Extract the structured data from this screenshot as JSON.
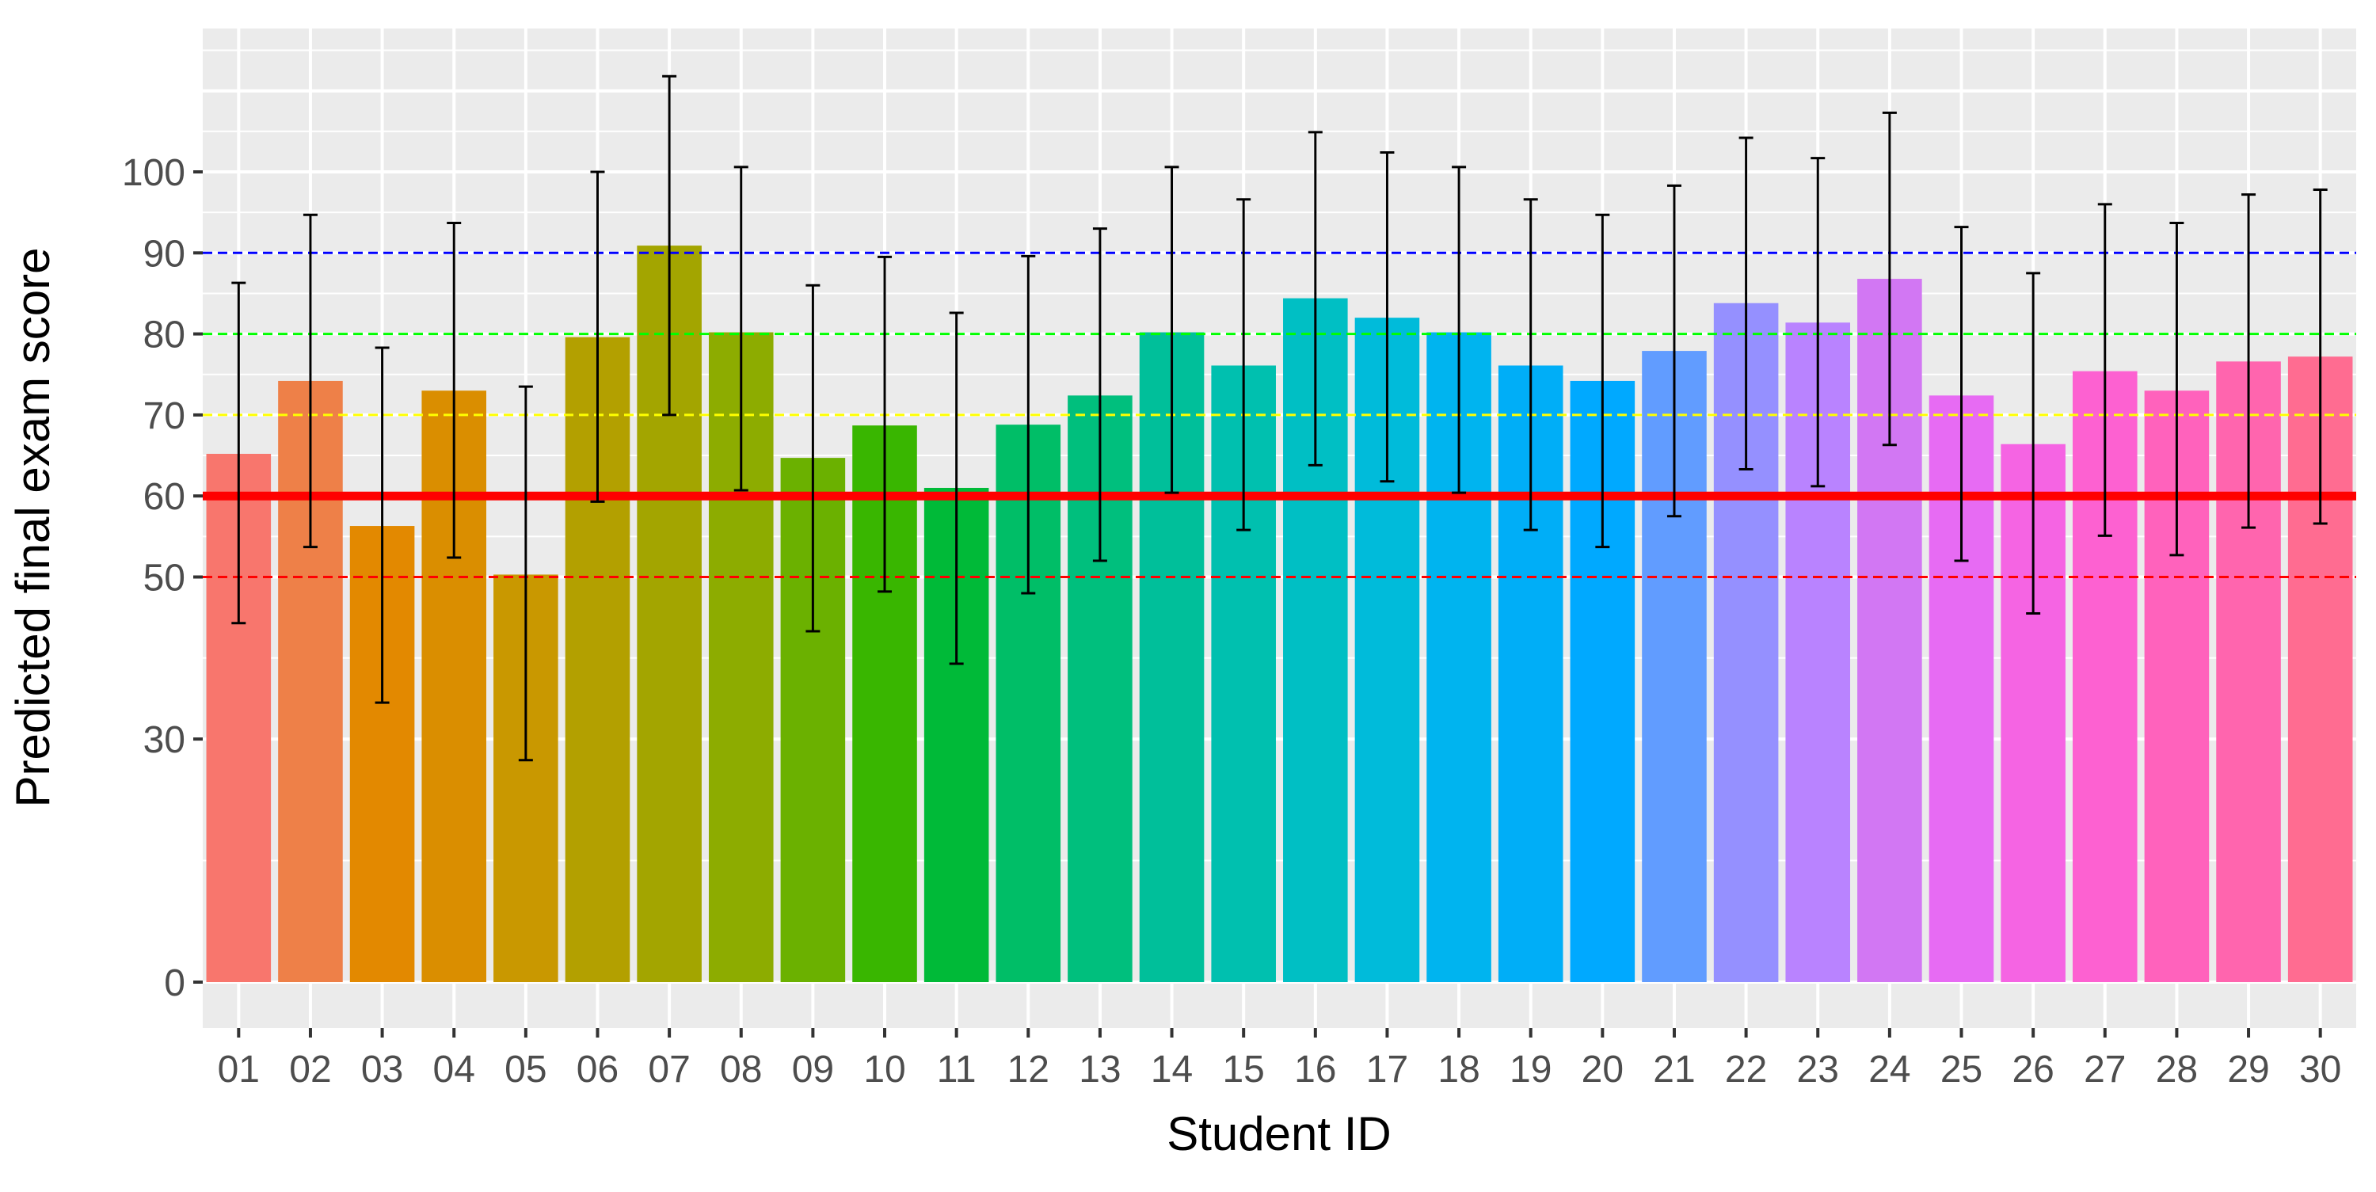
{
  "chart_data": {
    "type": "bar",
    "xlabel": "Student ID",
    "ylabel": "Predicted final exam score",
    "categories": [
      "01",
      "02",
      "03",
      "04",
      "05",
      "06",
      "07",
      "08",
      "09",
      "10",
      "11",
      "12",
      "13",
      "14",
      "15",
      "16",
      "17",
      "18",
      "19",
      "20",
      "21",
      "22",
      "23",
      "24",
      "25",
      "26",
      "27",
      "28",
      "29",
      "30"
    ],
    "values": [
      65.2,
      74.2,
      56.3,
      73.0,
      50.3,
      79.6,
      90.9,
      80.2,
      64.7,
      68.7,
      61.0,
      68.8,
      72.4,
      80.2,
      76.1,
      84.4,
      82.0,
      80.2,
      76.1,
      74.2,
      77.9,
      83.8,
      81.4,
      86.8,
      72.4,
      66.4,
      75.4,
      73.0,
      76.6,
      77.2
    ],
    "error_low": [
      44.3,
      53.7,
      34.5,
      52.4,
      27.4,
      59.3,
      70.0,
      60.7,
      43.3,
      48.2,
      39.3,
      48.0,
      52.0,
      60.4,
      55.8,
      63.8,
      61.8,
      60.4,
      55.8,
      53.7,
      57.5,
      63.3,
      61.2,
      66.3,
      52.0,
      45.5,
      55.1,
      52.7,
      56.1,
      56.6
    ],
    "error_high": [
      86.3,
      94.7,
      78.3,
      93.7,
      73.5,
      100.0,
      111.8,
      100.6,
      86.0,
      89.5,
      82.6,
      89.6,
      93.0,
      100.6,
      96.6,
      104.9,
      102.4,
      100.6,
      96.6,
      94.7,
      98.3,
      104.2,
      101.7,
      107.3,
      93.2,
      87.5,
      96.0,
      93.7,
      97.2,
      97.8
    ],
    "bar_colors": [
      "#F8766D",
      "#EE8048",
      "#E38900",
      "#DA8E00",
      "#C99800",
      "#B3A000",
      "#A3A500",
      "#8DAC00",
      "#6BB100",
      "#39B600",
      "#00BA38",
      "#00BE67",
      "#00BF7D",
      "#00BF9A",
      "#00C0AF",
      "#00BFC4",
      "#00BBDA",
      "#00B4EF",
      "#00AEF7",
      "#00A9FF",
      "#619CFF",
      "#9590FF",
      "#B983FF",
      "#D277F3",
      "#E76BF3",
      "#F564E3",
      "#FD61D1",
      "#FF62BC",
      "#FF65AE",
      "#FF6C91"
    ],
    "y_ticks": [
      0,
      30,
      50,
      60,
      70,
      80,
      90,
      100
    ],
    "ylim": [
      -5,
      118
    ],
    "reference_lines": [
      {
        "value": 50,
        "color": "#FF0000",
        "style": "dashed"
      },
      {
        "value": 60,
        "color": "#FF0000",
        "style": "solid-thick"
      },
      {
        "value": 70,
        "color": "#FFFF00",
        "style": "dashed"
      },
      {
        "value": 80,
        "color": "#00FF00",
        "style": "dashed"
      },
      {
        "value": 90,
        "color": "#0000FF",
        "style": "dashed"
      }
    ],
    "grid": true,
    "panel_background": "#EBEBEB"
  }
}
